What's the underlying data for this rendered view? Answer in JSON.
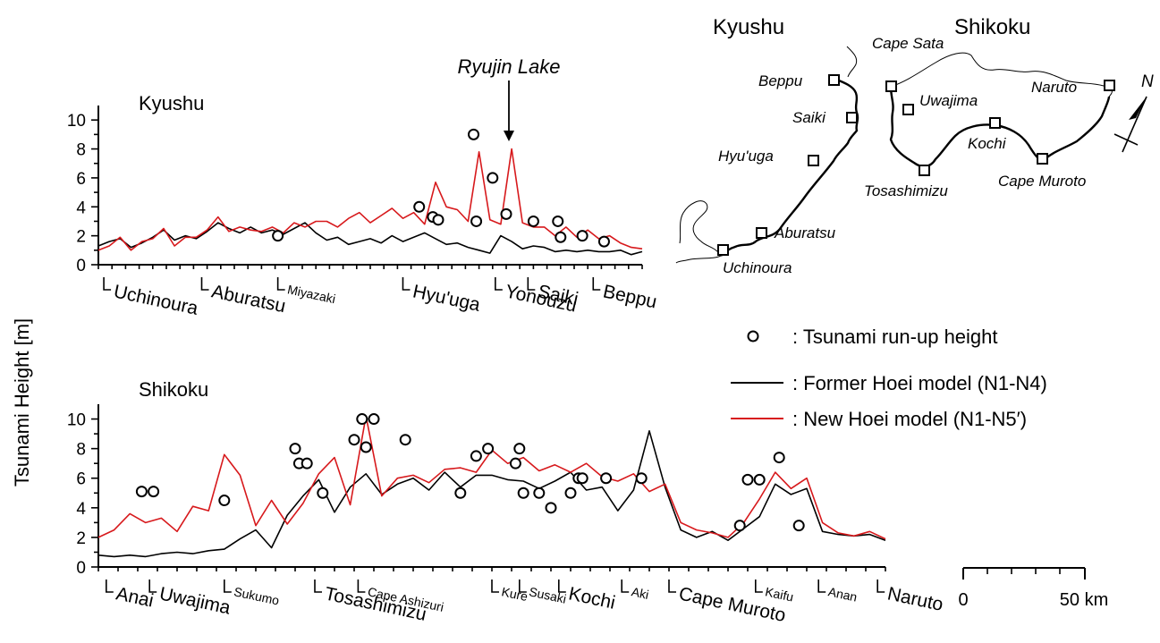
{
  "figure": {
    "y_axis_label": "Tsunami Height [m]",
    "y_ticks": [
      "0",
      "2",
      "4",
      "6",
      "8",
      "10"
    ],
    "annotation": "Ryujin Lake"
  },
  "legend": {
    "runup_symbol": "o",
    "runup_label": ": Tsunami run-up height",
    "former_label": ": Former Hoei model (N1-N4)",
    "new_label": ": New Hoei model (N1-N5′)",
    "former_color": "#000000",
    "new_color": "#d7191c"
  },
  "map": {
    "kyushu_title": "Kyushu",
    "shikoku_title": "Shikoku",
    "north_label": "N",
    "scale_start": "0",
    "scale_end": "50 km",
    "kyushu_stations": [
      "Beppu",
      "Saiki",
      "Hyu'uga",
      "Aburatsu",
      "Uchinoura"
    ],
    "shikoku_stations": [
      "Cape Sata",
      "Uwajima",
      "Naruto",
      "Kochi",
      "Tosashimizu",
      "Cape Muroto"
    ]
  },
  "chart_data": [
    {
      "type": "line",
      "title": "Kyushu",
      "ylabel": "Tsunami Height [m]",
      "ylim": [
        0,
        11
      ],
      "xlim": [
        0,
        100
      ],
      "location_ticks": [
        {
          "name": "Uchinoura",
          "x": 1.0,
          "size": "large"
        },
        {
          "name": "Aburatsu",
          "x": 19.0,
          "size": "large"
        },
        {
          "name": "Miyazaki",
          "x": 33.0,
          "size": "small"
        },
        {
          "name": "Hyu'uga",
          "x": 56.0,
          "size": "large"
        },
        {
          "name": "Yonouzu",
          "x": 73.0,
          "size": "large"
        },
        {
          "name": "Saiki",
          "x": 79.0,
          "size": "large"
        },
        {
          "name": "Beppu",
          "x": 91.0,
          "size": "large"
        }
      ],
      "series": [
        {
          "name": "Former Hoei model (N1-N4)",
          "x": [
            0,
            2,
            4,
            6,
            8,
            10,
            12,
            14,
            16,
            18,
            20,
            22,
            24,
            26,
            28,
            30,
            32,
            34,
            36,
            38,
            40,
            42,
            44,
            46,
            48,
            50,
            52,
            54,
            56,
            58,
            60,
            62,
            64,
            66,
            68,
            70,
            72,
            74,
            76,
            78,
            80,
            82,
            84,
            86,
            88,
            90,
            92,
            94,
            96,
            98,
            100
          ],
          "y": [
            1.3,
            1.6,
            1.8,
            1.2,
            1.5,
            1.9,
            2.4,
            1.7,
            2.0,
            1.8,
            2.3,
            2.9,
            2.5,
            2.2,
            2.6,
            2.2,
            2.4,
            2.1,
            2.5,
            2.9,
            2.2,
            1.7,
            1.9,
            1.4,
            1.6,
            1.8,
            1.5,
            2.0,
            1.6,
            1.9,
            2.2,
            1.8,
            1.4,
            1.5,
            1.2,
            1.0,
            0.8,
            2.0,
            1.6,
            1.1,
            1.3,
            1.2,
            0.9,
            1.0,
            0.9,
            1.0,
            0.9,
            0.9,
            1.0,
            0.7,
            0.9
          ]
        },
        {
          "name": "New Hoei model (N1-N5′)",
          "x": [
            0,
            2,
            4,
            6,
            8,
            10,
            12,
            14,
            16,
            18,
            20,
            22,
            24,
            26,
            28,
            30,
            32,
            34,
            36,
            38,
            40,
            42,
            44,
            46,
            48,
            50,
            52,
            54,
            56,
            58,
            60,
            62,
            64,
            66,
            68,
            70,
            72,
            74,
            76,
            78,
            80,
            82,
            84,
            86,
            88,
            90,
            92,
            94,
            96,
            98,
            100
          ],
          "y": [
            1.0,
            1.3,
            1.9,
            1.0,
            1.6,
            1.8,
            2.5,
            1.3,
            1.9,
            1.9,
            2.4,
            3.3,
            2.3,
            2.6,
            2.4,
            2.3,
            2.6,
            2.2,
            2.9,
            2.6,
            3.0,
            3.0,
            2.6,
            3.2,
            3.6,
            2.9,
            3.4,
            3.9,
            3.2,
            3.6,
            2.8,
            5.7,
            4.0,
            3.8,
            3.0,
            7.8,
            3.1,
            2.8,
            8.0,
            2.9,
            2.6,
            2.6,
            2.0,
            2.6,
            1.9,
            2.4,
            1.8,
            2.0,
            1.5,
            1.2,
            1.1
          ]
        },
        {
          "name": "Tsunami run-up height",
          "type": "scatter",
          "x": [
            33.0,
            59.0,
            61.5,
            62.5,
            69.0,
            69.5,
            72.5,
            75.0,
            80.0,
            84.5,
            85.0,
            89.0,
            93.0
          ],
          "y": [
            2.0,
            4.0,
            3.3,
            3.1,
            9.0,
            3.0,
            6.0,
            3.5,
            3.0,
            3.0,
            1.9,
            2.0,
            1.6
          ]
        }
      ]
    },
    {
      "type": "line",
      "title": "Shikoku",
      "ylabel": "Tsunami Height [m]",
      "ylim": [
        0,
        11
      ],
      "xlim": [
        0,
        100
      ],
      "location_ticks": [
        {
          "name": "Anai",
          "x": 1.0,
          "size": "large"
        },
        {
          "name": "Uwajima",
          "x": 6.5,
          "size": "large"
        },
        {
          "name": "Sukumo",
          "x": 16.0,
          "size": "small"
        },
        {
          "name": "Tosashimizu",
          "x": 27.5,
          "size": "large"
        },
        {
          "name": "Cape Ashizuri",
          "x": 33.0,
          "size": "small"
        },
        {
          "name": "Kure",
          "x": 50.0,
          "size": "small"
        },
        {
          "name": "Susaki",
          "x": 53.5,
          "size": "small"
        },
        {
          "name": "Kochi",
          "x": 58.5,
          "size": "large"
        },
        {
          "name": "Aki",
          "x": 66.5,
          "size": "small"
        },
        {
          "name": "Cape Muroto",
          "x": 72.5,
          "size": "large"
        },
        {
          "name": "Kaifu",
          "x": 83.5,
          "size": "small"
        },
        {
          "name": "Anan",
          "x": 91.5,
          "size": "small"
        },
        {
          "name": "Naruto",
          "x": 99.0,
          "size": "large"
        }
      ],
      "series": [
        {
          "name": "Former Hoei model (N1-N4)",
          "x": [
            0,
            2,
            4,
            6,
            8,
            10,
            12,
            14,
            16,
            18,
            20,
            22,
            24,
            26,
            28,
            30,
            32,
            34,
            36,
            38,
            40,
            42,
            44,
            46,
            48,
            50,
            52,
            54,
            56,
            58,
            60,
            62,
            64,
            66,
            68,
            70,
            72,
            74,
            76,
            78,
            80,
            82,
            84,
            86,
            88,
            90,
            92,
            94,
            96,
            98,
            100
          ],
          "y": [
            0.8,
            0.7,
            0.8,
            0.7,
            0.9,
            1.0,
            0.9,
            1.1,
            1.2,
            1.9,
            2.5,
            1.3,
            3.5,
            4.8,
            5.9,
            3.7,
            5.4,
            6.3,
            4.9,
            5.6,
            6.0,
            5.2,
            6.4,
            5.4,
            6.2,
            6.2,
            5.9,
            5.8,
            5.3,
            5.8,
            6.4,
            5.2,
            5.4,
            3.8,
            5.2,
            9.2,
            5.4,
            2.5,
            2.0,
            2.4,
            1.8,
            2.6,
            3.4,
            5.6,
            4.9,
            5.3,
            2.4,
            2.2,
            2.1,
            2.2,
            1.8
          ]
        },
        {
          "name": "New Hoei model (N1-N5′)",
          "x": [
            0,
            2,
            4,
            6,
            8,
            10,
            12,
            14,
            16,
            18,
            20,
            22,
            24,
            26,
            28,
            30,
            32,
            34,
            36,
            38,
            40,
            42,
            44,
            46,
            48,
            50,
            52,
            54,
            56,
            58,
            60,
            62,
            64,
            66,
            68,
            70,
            72,
            74,
            76,
            78,
            80,
            82,
            84,
            86,
            88,
            90,
            92,
            94,
            96,
            98,
            100
          ],
          "y": [
            2.0,
            2.5,
            3.6,
            3.0,
            3.3,
            2.4,
            4.1,
            3.8,
            7.6,
            6.2,
            2.8,
            4.5,
            2.9,
            4.3,
            6.3,
            7.4,
            4.2,
            10.2,
            4.8,
            6.0,
            6.2,
            5.7,
            6.6,
            6.7,
            6.4,
            7.9,
            7.0,
            7.4,
            6.5,
            6.9,
            6.4,
            7.0,
            6.1,
            5.8,
            6.3,
            5.1,
            5.6,
            3.0,
            2.5,
            2.3,
            2.0,
            3.0,
            4.6,
            6.4,
            5.3,
            6.0,
            3.0,
            2.3,
            2.1,
            2.4,
            1.9
          ]
        },
        {
          "name": "Tsunami run-up height",
          "type": "scatter",
          "x": [
            5.5,
            7.0,
            16.0,
            25.0,
            25.5,
            26.5,
            28.5,
            32.5,
            33.5,
            34.0,
            35.0,
            39.0,
            46.0,
            48.0,
            49.5,
            53.0,
            53.5,
            54.0,
            56.0,
            57.5,
            60.0,
            61.0,
            61.5,
            64.5,
            69.0,
            81.5,
            82.5,
            84.0,
            86.5,
            89.0
          ],
          "y": [
            5.1,
            5.1,
            4.5,
            8.0,
            7.0,
            7.0,
            5.0,
            8.6,
            10.0,
            8.1,
            10.0,
            8.6,
            5.0,
            7.5,
            8.0,
            7.0,
            8.0,
            5.0,
            5.0,
            4.0,
            5.0,
            6.0,
            6.0,
            6.0,
            6.0,
            2.8,
            5.9,
            5.9,
            7.4,
            2.8
          ]
        }
      ]
    }
  ]
}
